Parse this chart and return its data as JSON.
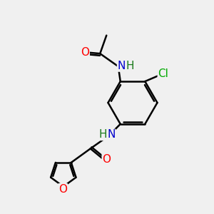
{
  "background_color": "#f0f0f0",
  "bond_color": "#000000",
  "atom_colors": {
    "O": "#ff0000",
    "N": "#0000cd",
    "Cl": "#00aa00",
    "C": "#000000",
    "H": "#1a7a1a"
  },
  "bond_width": 1.8,
  "font_size": 11,
  "fig_size": [
    3.0,
    3.0
  ],
  "dpi": 100,
  "xlim": [
    0,
    10
  ],
  "ylim": [
    0,
    10
  ]
}
